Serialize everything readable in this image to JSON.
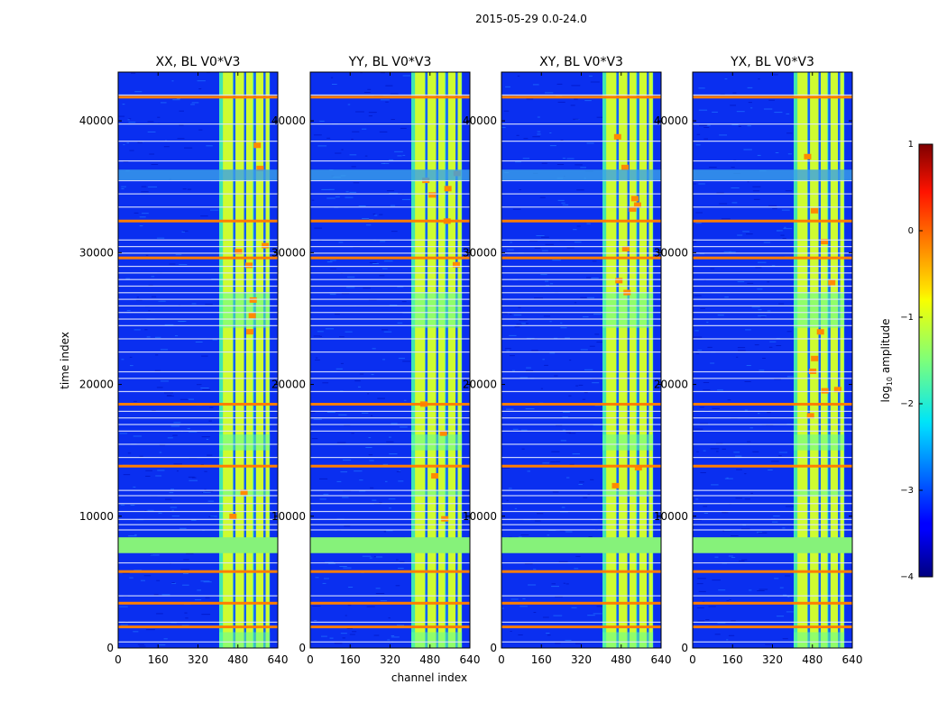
{
  "figure": {
    "suptitle": "2015-05-29 0.0-24.0",
    "xlabel": "channel index",
    "ylabel": "time index"
  },
  "chart_data": {
    "type": "heatmap",
    "colormap": "jet",
    "x_range": [
      0,
      640
    ],
    "y_range": [
      0,
      43700
    ],
    "xticks": [
      "0",
      "160",
      "320",
      "480",
      "640"
    ],
    "xtick_values": [
      0,
      160,
      320,
      480,
      640
    ],
    "yticks": [
      "0",
      "10000",
      "20000",
      "30000",
      "40000"
    ],
    "ytick_values": [
      0,
      10000,
      20000,
      30000,
      40000
    ],
    "panels": [
      {
        "title": "XX, BL V0*V3",
        "pol": "XX"
      },
      {
        "title": "YY, BL V0*V3",
        "pol": "YY"
      },
      {
        "title": "XY, BL V0*V3",
        "pol": "XY"
      },
      {
        "title": "YX, BL V0*V3",
        "pol": "YX"
      }
    ],
    "colorbar": {
      "label_prefix": "log",
      "label_sub": "10",
      "label_suffix": " amplitude",
      "range": [
        -4,
        1
      ],
      "ticks": [
        "1",
        "0",
        "−1",
        "−2",
        "−3",
        "−4"
      ],
      "tick_values": [
        1,
        0,
        -1,
        -2,
        -3,
        -4
      ]
    }
  }
}
